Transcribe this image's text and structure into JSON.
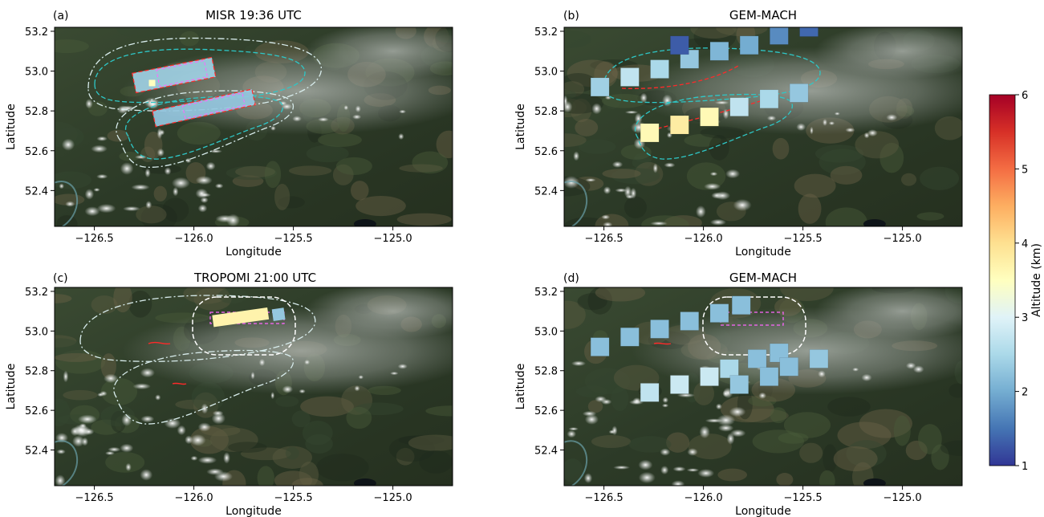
{
  "figure": {
    "colorbar": {
      "label": "Altitude (km)",
      "min": 1,
      "max": 6,
      "ticks": [
        "1",
        "2",
        "3",
        "4",
        "5",
        "6"
      ],
      "colormap": [
        "#313695",
        "#4575b4",
        "#74add1",
        "#abd9e9",
        "#e0f3f8",
        "#ffffbf",
        "#fee090",
        "#fdae61",
        "#f46d43",
        "#d73027",
        "#a50026"
      ]
    },
    "colors": {
      "fire_outline": "#ff2a2a",
      "model_plume_contour": "#2ec7c7",
      "obs_plume_contour": "#d8ecec",
      "tropomi_box": "#ff66ff",
      "focus_region": "#ffffff"
    }
  },
  "chart_data": [
    {
      "type": "heatmap",
      "panel_letter": "(a)",
      "title": "MISR 19:36 UTC",
      "xlabel": "Longitude",
      "ylabel": "Latitude",
      "xlim": [
        -126.7,
        -124.7
      ],
      "ylim": [
        52.22,
        53.22
      ],
      "xticks": [
        "−126.5",
        "−126.0",
        "−125.5",
        "−125.0"
      ],
      "yticks": [
        "52.4",
        "52.6",
        "52.8",
        "53.0",
        "53.2"
      ],
      "plume_swaths": [
        {
          "lon_start": -126.3,
          "lat_start": 52.94,
          "lon_end": -125.9,
          "lat_end": 53.02,
          "width_deg": 0.1,
          "altitude_km": 2.4
        },
        {
          "lon_start": -126.2,
          "lat_start": 52.76,
          "lon_end": -125.7,
          "lat_end": 52.87,
          "width_deg": 0.08,
          "altitude_km": 2.3
        }
      ],
      "hotspot_points": [
        {
          "lon": -126.21,
          "lat": 52.94,
          "altitude_km": 3.5
        }
      ]
    },
    {
      "type": "heatmap",
      "panel_letter": "(b)",
      "title": "GEM-MACH",
      "xlabel": "Longitude",
      "ylabel": "Latitude",
      "xlim": [
        -126.7,
        -124.7
      ],
      "ylim": [
        52.22,
        53.22
      ],
      "xticks": [
        "−126.5",
        "−126.0",
        "−125.5",
        "−125.0"
      ],
      "yticks": [
        "52.4",
        "52.6",
        "52.8",
        "53.0",
        "53.2"
      ],
      "cells": [
        {
          "lon": -126.52,
          "lat": 52.92,
          "altitude_km": 2.4
        },
        {
          "lon": -126.37,
          "lat": 52.97,
          "altitude_km": 2.7
        },
        {
          "lon": -126.22,
          "lat": 53.01,
          "altitude_km": 2.5
        },
        {
          "lon": -126.07,
          "lat": 53.06,
          "altitude_km": 2.3
        },
        {
          "lon": -125.92,
          "lat": 53.1,
          "altitude_km": 2.1
        },
        {
          "lon": -125.77,
          "lat": 53.13,
          "altitude_km": 2.0
        },
        {
          "lon": -125.62,
          "lat": 53.18,
          "altitude_km": 1.7
        },
        {
          "lon": -125.47,
          "lat": 53.22,
          "altitude_km": 1.4
        },
        {
          "lon": -126.12,
          "lat": 53.13,
          "altitude_km": 1.3
        },
        {
          "lon": -126.27,
          "lat": 52.69,
          "altitude_km": 3.6
        },
        {
          "lon": -126.12,
          "lat": 52.73,
          "altitude_km": 3.8
        },
        {
          "lon": -125.97,
          "lat": 52.77,
          "altitude_km": 3.6
        },
        {
          "lon": -125.82,
          "lat": 52.82,
          "altitude_km": 2.7
        },
        {
          "lon": -125.67,
          "lat": 52.86,
          "altitude_km": 2.5
        },
        {
          "lon": -125.52,
          "lat": 52.89,
          "altitude_km": 2.3
        }
      ]
    },
    {
      "type": "heatmap",
      "panel_letter": "(c)",
      "title": "TROPOMI  21:00 UTC",
      "xlabel": "Longitude",
      "ylabel": "Latitude",
      "xlim": [
        -126.7,
        -124.7
      ],
      "ylim": [
        52.22,
        53.22
      ],
      "xticks": [
        "−126.5",
        "−126.0",
        "−125.5",
        "−125.0"
      ],
      "yticks": [
        "52.4",
        "52.6",
        "52.8",
        "53.0",
        "53.2"
      ],
      "pixels": [
        {
          "lon_min": -125.9,
          "lon_max": -125.62,
          "lat_min": 53.02,
          "lat_max": 53.08,
          "altitude_km": 3.7
        },
        {
          "lon_min": -125.6,
          "lon_max": -125.54,
          "lat_min": 53.05,
          "lat_max": 53.11,
          "altitude_km": 2.3
        }
      ]
    },
    {
      "type": "heatmap",
      "panel_letter": "(d)",
      "title": "GEM-MACH",
      "xlabel": "Longitude",
      "ylabel": "Latitude",
      "xlim": [
        -126.7,
        -124.7
      ],
      "ylim": [
        52.22,
        53.22
      ],
      "xticks": [
        "−126.5",
        "−126.0",
        "−125.5",
        "−125.0"
      ],
      "yticks": [
        "52.4",
        "52.6",
        "52.8",
        "53.0",
        "53.2"
      ],
      "cells": [
        {
          "lon": -126.52,
          "lat": 52.92,
          "altitude_km": 2.2
        },
        {
          "lon": -126.37,
          "lat": 52.97,
          "altitude_km": 2.2
        },
        {
          "lon": -126.22,
          "lat": 53.01,
          "altitude_km": 2.2
        },
        {
          "lon": -126.07,
          "lat": 53.05,
          "altitude_km": 2.2
        },
        {
          "lon": -125.92,
          "lat": 53.09,
          "altitude_km": 2.2
        },
        {
          "lon": -125.81,
          "lat": 53.13,
          "altitude_km": 2.2
        },
        {
          "lon": -126.27,
          "lat": 52.69,
          "altitude_km": 2.7
        },
        {
          "lon": -126.12,
          "lat": 52.73,
          "altitude_km": 2.8
        },
        {
          "lon": -125.97,
          "lat": 52.77,
          "altitude_km": 2.8
        },
        {
          "lon": -125.87,
          "lat": 52.81,
          "altitude_km": 2.5
        },
        {
          "lon": -125.82,
          "lat": 52.73,
          "altitude_km": 2.3
        },
        {
          "lon": -125.73,
          "lat": 52.86,
          "altitude_km": 2.2
        },
        {
          "lon": -125.67,
          "lat": 52.77,
          "altitude_km": 2.2
        },
        {
          "lon": -125.62,
          "lat": 52.89,
          "altitude_km": 2.2
        },
        {
          "lon": -125.57,
          "lat": 52.82,
          "altitude_km": 2.2
        },
        {
          "lon": -125.42,
          "lat": 52.86,
          "altitude_km": 2.3
        }
      ]
    }
  ]
}
